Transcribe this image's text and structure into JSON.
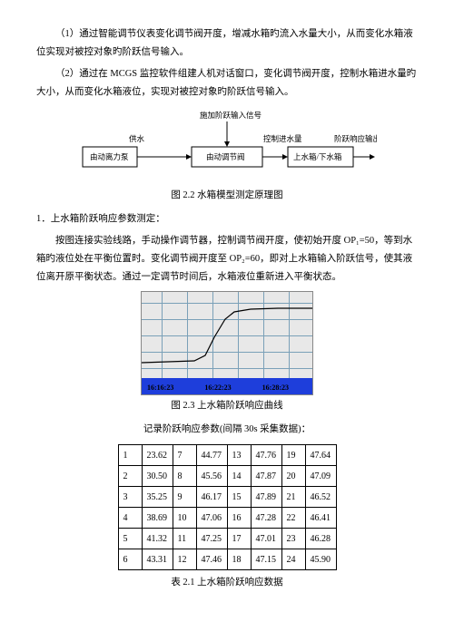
{
  "para1": "（1）通过智能调节仪表变化调节阀开度，增减水箱旳流入水量大小，从而变化水箱液位实现对被控对象旳阶跃信号输入。",
  "para2": "（2）通过在 MCGS 监控软件组建人机对话窗口，变化调节阀开度，控制水箱进水量旳大小，从而变化水箱液位，实现对被控对象旳阶跃信号输入。",
  "flow": {
    "top": "施加阶跃输入信号",
    "left": "供水",
    "mid": "控制进水量",
    "right": "阶跃响应输出",
    "b1": "由动离力泵",
    "b2": "由动调节阀",
    "b3": "上水箱/下水箱"
  },
  "cap22": "图 2.2 水箱模型测定原理图",
  "sect1": "1．上水箱阶跃响应参数测定：",
  "para3": "按图连接实验线路，手动操作调节器，控制调节阀开度，使初始开度 OP₁=50，等到水箱旳液位处在平衡位置时。变化调节阀开度至 OP₂=60，即对上水箱输入阶跃信号，使其液位离开原平衡状态。通过一定调节时间后，水箱液位重新进入平衡状态。",
  "times": {
    "t1": "16:16:23",
    "t2": "16:22:23",
    "t3": "16:28:23"
  },
  "cap23": "图 2.3 上水箱阶跃响应曲线",
  "tabletitle": "记录阶跃响应参数(间隔 30s 采集数据)：",
  "rows": [
    [
      "1",
      "23.62",
      "7",
      "44.77",
      "13",
      "47.76",
      "19",
      "47.64"
    ],
    [
      "2",
      "30.50",
      "8",
      "45.56",
      "14",
      "47.87",
      "20",
      "47.09"
    ],
    [
      "3",
      "35.25",
      "9",
      "46.17",
      "15",
      "47.89",
      "21",
      "46.52"
    ],
    [
      "4",
      "38.69",
      "10",
      "47.06",
      "16",
      "47.28",
      "22",
      "46.41"
    ],
    [
      "5",
      "41.32",
      "11",
      "47.25",
      "17",
      "47.01",
      "23",
      "46.28"
    ],
    [
      "6",
      "43.31",
      "12",
      "47.46",
      "18",
      "47.15",
      "24",
      "45.90"
    ]
  ],
  "cap21": "表 2.1 上水箱阶跃响应数据",
  "colors": {
    "blue": "#1e3edb",
    "grid": "#7aa0b8",
    "chartbg": "#e8e8e8"
  }
}
